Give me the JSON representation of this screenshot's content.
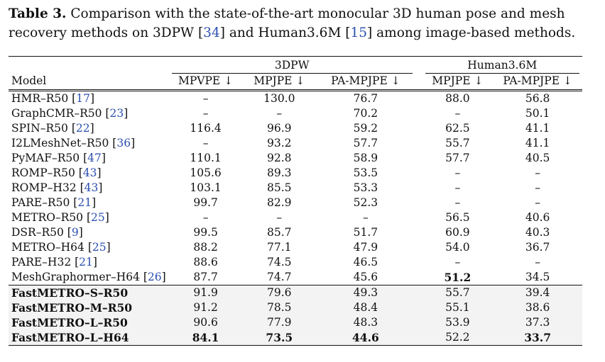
{
  "caption": {
    "label": "Table 3.",
    "parts": [
      {
        "text": " Comparison with the state-of-the-art monocular 3D human pose and mesh recovery methods on 3DPW ",
        "ref": false
      },
      {
        "text": "[",
        "ref": false
      },
      {
        "text": "34",
        "ref": true
      },
      {
        "text": "] and Human3.6M [",
        "ref": false
      },
      {
        "text": "15",
        "ref": true
      },
      {
        "text": "] among image-based methods.",
        "ref": false
      }
    ]
  },
  "table": {
    "model_header": "Model",
    "groups": [
      {
        "name": "3DPW",
        "cols": [
          "MPVPE ↓",
          "MPJPE ↓",
          "PA-MPJPE ↓"
        ]
      },
      {
        "name": "Human3.6M",
        "cols": [
          "MPJPE ↓",
          "PA-MPJPE ↓"
        ]
      }
    ],
    "rows": [
      {
        "model": "HMR–R50 ",
        "ref": "17",
        "values": [
          "–",
          "130.0",
          "76.7",
          "88.0",
          "56.8"
        ],
        "bold": [],
        "fast": false
      },
      {
        "model": "GraphCMR–R50 ",
        "ref": "23",
        "values": [
          "–",
          "–",
          "70.2",
          "–",
          "50.1"
        ],
        "bold": [],
        "fast": false
      },
      {
        "model": "SPIN–R50 ",
        "ref": "22",
        "values": [
          "116.4",
          "96.9",
          "59.2",
          "62.5",
          "41.1"
        ],
        "bold": [],
        "fast": false
      },
      {
        "model": "I2LMeshNet–R50 ",
        "ref": "36",
        "values": [
          "–",
          "93.2",
          "57.7",
          "55.7",
          "41.1"
        ],
        "bold": [],
        "fast": false
      },
      {
        "model": "PyMAF–R50 ",
        "ref": "47",
        "values": [
          "110.1",
          "92.8",
          "58.9",
          "57.7",
          "40.5"
        ],
        "bold": [],
        "fast": false
      },
      {
        "model": "ROMP–R50 ",
        "ref": "43",
        "values": [
          "105.6",
          "89.3",
          "53.5",
          "–",
          "–"
        ],
        "bold": [],
        "fast": false
      },
      {
        "model": "ROMP–H32 ",
        "ref": "43",
        "values": [
          "103.1",
          "85.5",
          "53.3",
          "–",
          "–"
        ],
        "bold": [],
        "fast": false
      },
      {
        "model": "PARE–R50 ",
        "ref": "21",
        "values": [
          "99.7",
          "82.9",
          "52.3",
          "–",
          "–"
        ],
        "bold": [],
        "fast": false
      },
      {
        "model": "METRO–R50 ",
        "ref": "25",
        "values": [
          "–",
          "–",
          "–",
          "56.5",
          "40.6"
        ],
        "bold": [],
        "fast": false
      },
      {
        "model": "DSR–R50 ",
        "ref": "9",
        "values": [
          "99.5",
          "85.7",
          "51.7",
          "60.9",
          "40.3"
        ],
        "bold": [],
        "fast": false
      },
      {
        "model": "METRO–H64 ",
        "ref": "25",
        "values": [
          "88.2",
          "77.1",
          "47.9",
          "54.0",
          "36.7"
        ],
        "bold": [],
        "fast": false
      },
      {
        "model": "PARE–H32 ",
        "ref": "21",
        "values": [
          "88.6",
          "74.5",
          "46.5",
          "–",
          "–"
        ],
        "bold": [],
        "fast": false
      },
      {
        "model": "MeshGraphormer–H64 ",
        "ref": "26",
        "values": [
          "87.7",
          "74.7",
          "45.6",
          "51.2",
          "34.5"
        ],
        "bold": [
          3
        ],
        "fast": false
      },
      {
        "model": "FastMETRO–S–R50",
        "ref": "",
        "values": [
          "91.9",
          "79.6",
          "49.3",
          "55.7",
          "39.4"
        ],
        "bold": [],
        "fast": true
      },
      {
        "model": "FastMETRO–M–R50",
        "ref": "",
        "values": [
          "91.2",
          "78.5",
          "48.4",
          "55.1",
          "38.6"
        ],
        "bold": [],
        "fast": true
      },
      {
        "model": "FastMETRO–L–R50",
        "ref": "",
        "values": [
          "90.6",
          "77.9",
          "48.3",
          "53.9",
          "37.3"
        ],
        "bold": [],
        "fast": true
      },
      {
        "model": "FastMETRO–L–H64",
        "ref": "",
        "values": [
          "84.1",
          "73.5",
          "44.6",
          "52.2",
          "33.7"
        ],
        "bold": [
          0,
          1,
          2,
          4
        ],
        "fast": true
      }
    ]
  }
}
